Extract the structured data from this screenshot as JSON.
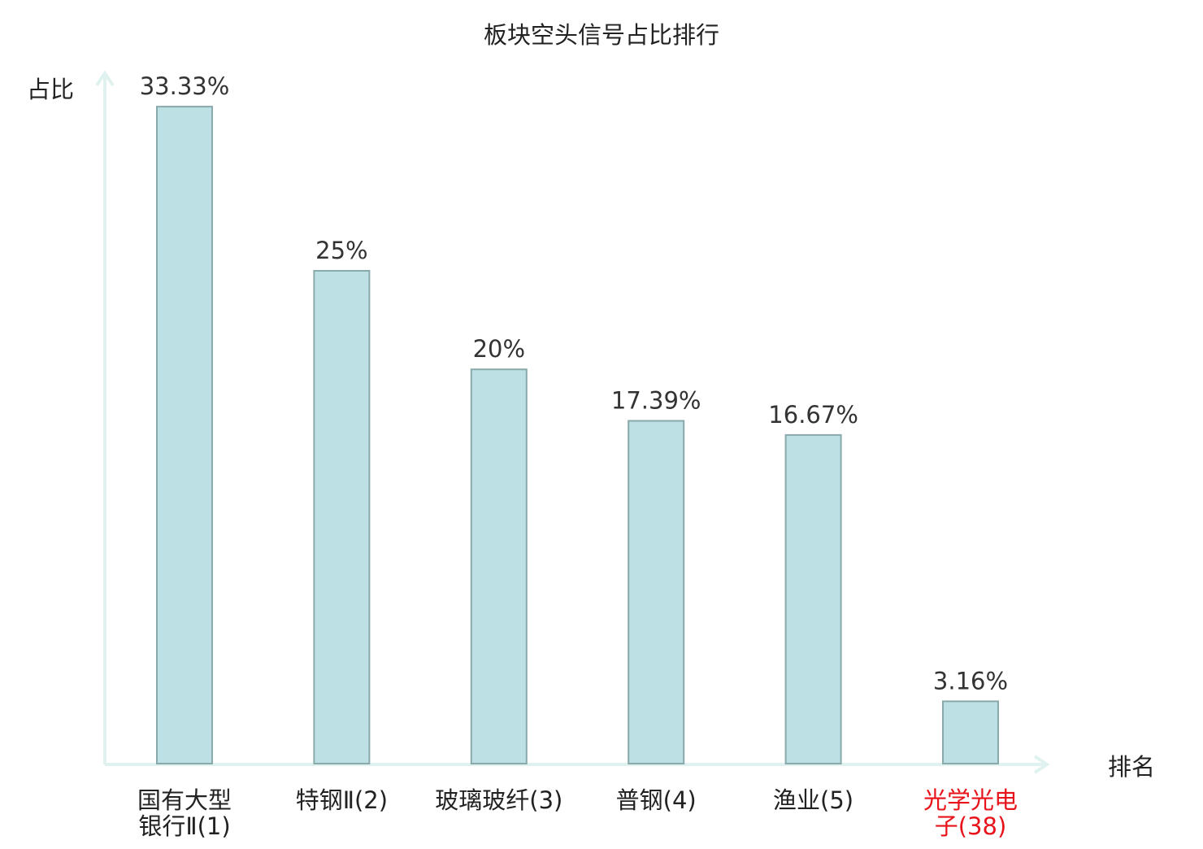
{
  "chart_data": {
    "type": "bar",
    "title": "板块空头信号占比排行",
    "ylabel": "占比",
    "xlabel": "排名",
    "ylim": [
      0,
      35
    ],
    "grid": false,
    "legend": "none",
    "categories": [
      [
        "国有大型",
        "银行Ⅱ(1)"
      ],
      [
        "特钢Ⅱ(2)"
      ],
      [
        "玻璃玻纤(3)"
      ],
      [
        "普钢(4)"
      ],
      [
        "渔业(5)"
      ],
      [
        "光学光电",
        "子(38)"
      ]
    ],
    "values": [
      33.33,
      25,
      20,
      17.39,
      16.67,
      3.16
    ],
    "value_labels": [
      "33.33%",
      "25%",
      "20%",
      "17.39%",
      "16.67%",
      "3.16%"
    ],
    "highlight_index": 5,
    "colors": {
      "bar_fill": "#bce0e3",
      "bar_stroke": "#8aa9ab",
      "axis": "#dff2ef",
      "text": "#222222",
      "value_text": "#333333",
      "highlight_text": "#e8131a"
    }
  }
}
